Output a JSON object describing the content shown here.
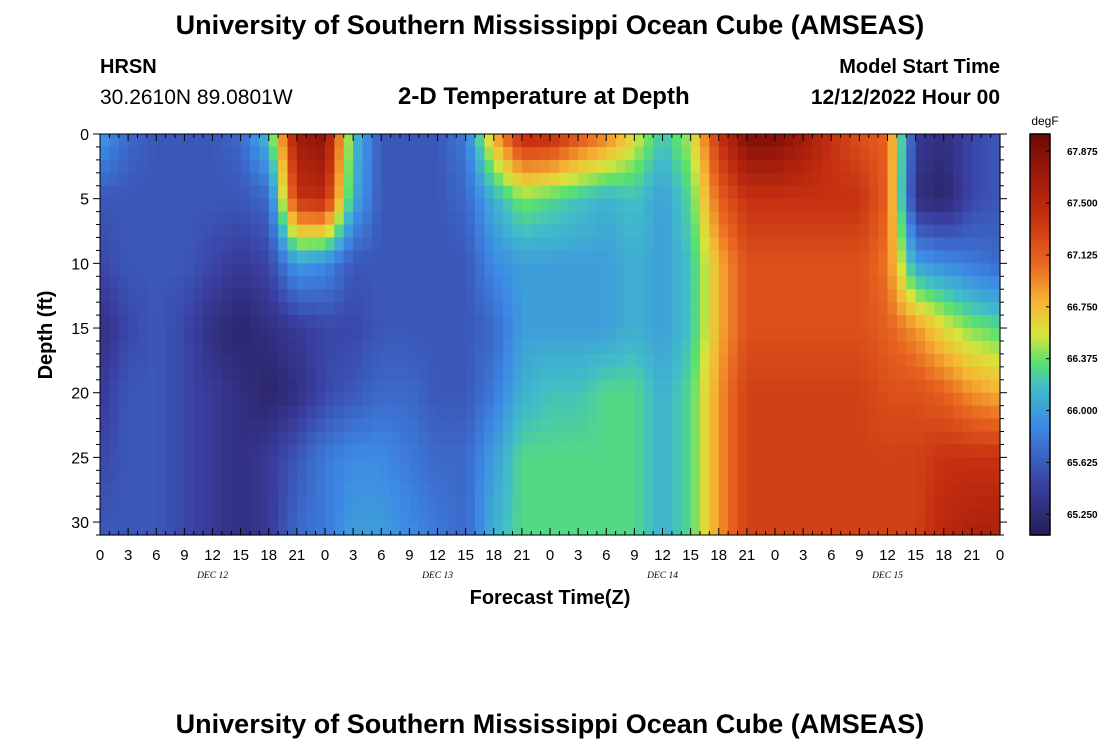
{
  "header": {
    "title": "University of Southern Mississippi Ocean Cube (AMSEAS)",
    "station": "HRSN",
    "coordinates": "30.2610N  89.0801W",
    "subtitle": "2-D Temperature at Depth",
    "model_start_label": "Model Start Time",
    "model_start_value": "12/12/2022 Hour 00"
  },
  "footer": {
    "title": "University of Southern Mississippi Ocean Cube (AMSEAS)"
  },
  "chart_data": {
    "type": "heatmap",
    "xlabel": "Forecast Time(Z)",
    "ylabel": "Depth (ft)",
    "x_tick_labels": [
      "0",
      "3",
      "6",
      "9",
      "12",
      "15",
      "18",
      "21",
      "0",
      "3",
      "6",
      "9",
      "12",
      "15",
      "18",
      "21",
      "0",
      "3",
      "6",
      "9",
      "12",
      "15",
      "18",
      "21",
      "0",
      "3",
      "6",
      "9",
      "12",
      "15",
      "18",
      "21",
      "0"
    ],
    "date_labels": [
      {
        "label": "DEC 12",
        "hour": 12
      },
      {
        "label": "DEC 13",
        "hour": 36
      },
      {
        "label": "DEC 14",
        "hour": 60
      },
      {
        "label": "DEC 15",
        "hour": 84
      }
    ],
    "x_range_hours": [
      0,
      96
    ],
    "y_ticks": [
      0,
      5,
      10,
      15,
      20,
      25,
      30
    ],
    "y_range_ft": [
      0,
      31
    ],
    "colorbar": {
      "unit": "degF",
      "ticks": [
        "67.875",
        "67.500",
        "67.125",
        "66.750",
        "66.375",
        "66.000",
        "65.625",
        "65.250"
      ],
      "range": [
        65.1,
        68.0
      ]
    },
    "depths_ft": [
      0,
      5,
      10,
      15,
      20,
      25,
      31
    ],
    "hours": [
      0,
      3,
      6,
      9,
      12,
      15,
      18,
      21,
      24,
      27,
      30,
      33,
      36,
      39,
      42,
      45,
      48,
      51,
      54,
      57,
      60,
      63,
      66,
      69,
      72,
      75,
      78,
      81,
      84,
      87,
      90,
      93,
      96
    ],
    "temperature_grid": [
      [
        66.0,
        65.7,
        65.6,
        65.6,
        65.6,
        65.7,
        66.2,
        67.7,
        67.8,
        66.2,
        65.6,
        65.6,
        65.6,
        65.8,
        66.8,
        67.5,
        67.5,
        67.2,
        67.0,
        66.6,
        66.2,
        66.5,
        67.4,
        67.9,
        67.9,
        67.7,
        67.4,
        67.2,
        67.1,
        65.4,
        65.3,
        65.5,
        65.6
      ],
      [
        65.6,
        65.6,
        65.6,
        65.6,
        65.6,
        65.6,
        65.7,
        67.4,
        67.5,
        66.1,
        65.6,
        65.6,
        65.6,
        65.7,
        66.1,
        66.4,
        66.3,
        66.2,
        66.1,
        66.2,
        66.0,
        66.3,
        67.1,
        67.4,
        67.4,
        67.4,
        67.4,
        67.4,
        67.1,
        65.3,
        65.2,
        65.5,
        65.6
      ],
      [
        65.5,
        65.6,
        65.6,
        65.6,
        65.5,
        65.4,
        65.5,
        66.0,
        65.9,
        65.6,
        65.6,
        65.6,
        65.6,
        65.6,
        65.9,
        66.0,
        66.0,
        66.0,
        66.0,
        66.1,
        66.0,
        66.2,
        66.8,
        67.2,
        67.2,
        67.2,
        67.2,
        67.2,
        67.0,
        66.0,
        65.9,
        65.8,
        65.7
      ],
      [
        65.3,
        65.5,
        65.6,
        65.5,
        65.3,
        65.2,
        65.3,
        65.4,
        65.5,
        65.5,
        65.6,
        65.6,
        65.6,
        65.6,
        65.7,
        66.0,
        66.0,
        66.0,
        66.0,
        66.1,
        66.0,
        66.2,
        66.8,
        67.2,
        67.2,
        67.2,
        67.2,
        67.2,
        67.1,
        66.9,
        66.6,
        66.4,
        66.3
      ],
      [
        65.4,
        65.6,
        65.6,
        65.5,
        65.4,
        65.3,
        65.2,
        65.3,
        65.5,
        65.6,
        65.7,
        65.7,
        65.6,
        65.6,
        65.8,
        66.1,
        66.2,
        66.2,
        66.3,
        66.3,
        66.1,
        66.3,
        66.9,
        67.3,
        67.3,
        67.3,
        67.3,
        67.3,
        67.2,
        67.2,
        67.1,
        66.9,
        66.8
      ],
      [
        65.5,
        65.6,
        65.6,
        65.5,
        65.4,
        65.3,
        65.4,
        65.6,
        65.8,
        65.9,
        65.9,
        65.8,
        65.7,
        65.7,
        66.0,
        66.3,
        66.3,
        66.3,
        66.3,
        66.3,
        66.1,
        66.3,
        66.9,
        67.3,
        67.3,
        67.3,
        67.3,
        67.3,
        67.3,
        67.3,
        67.4,
        67.4,
        67.4
      ],
      [
        65.6,
        65.6,
        65.6,
        65.5,
        65.4,
        65.3,
        65.4,
        65.7,
        65.8,
        66.0,
        66.0,
        65.9,
        65.8,
        65.7,
        66.1,
        66.3,
        66.3,
        66.3,
        66.3,
        66.3,
        66.1,
        66.3,
        66.9,
        67.3,
        67.3,
        67.3,
        67.3,
        67.3,
        67.3,
        67.3,
        67.5,
        67.6,
        67.6
      ]
    ]
  }
}
